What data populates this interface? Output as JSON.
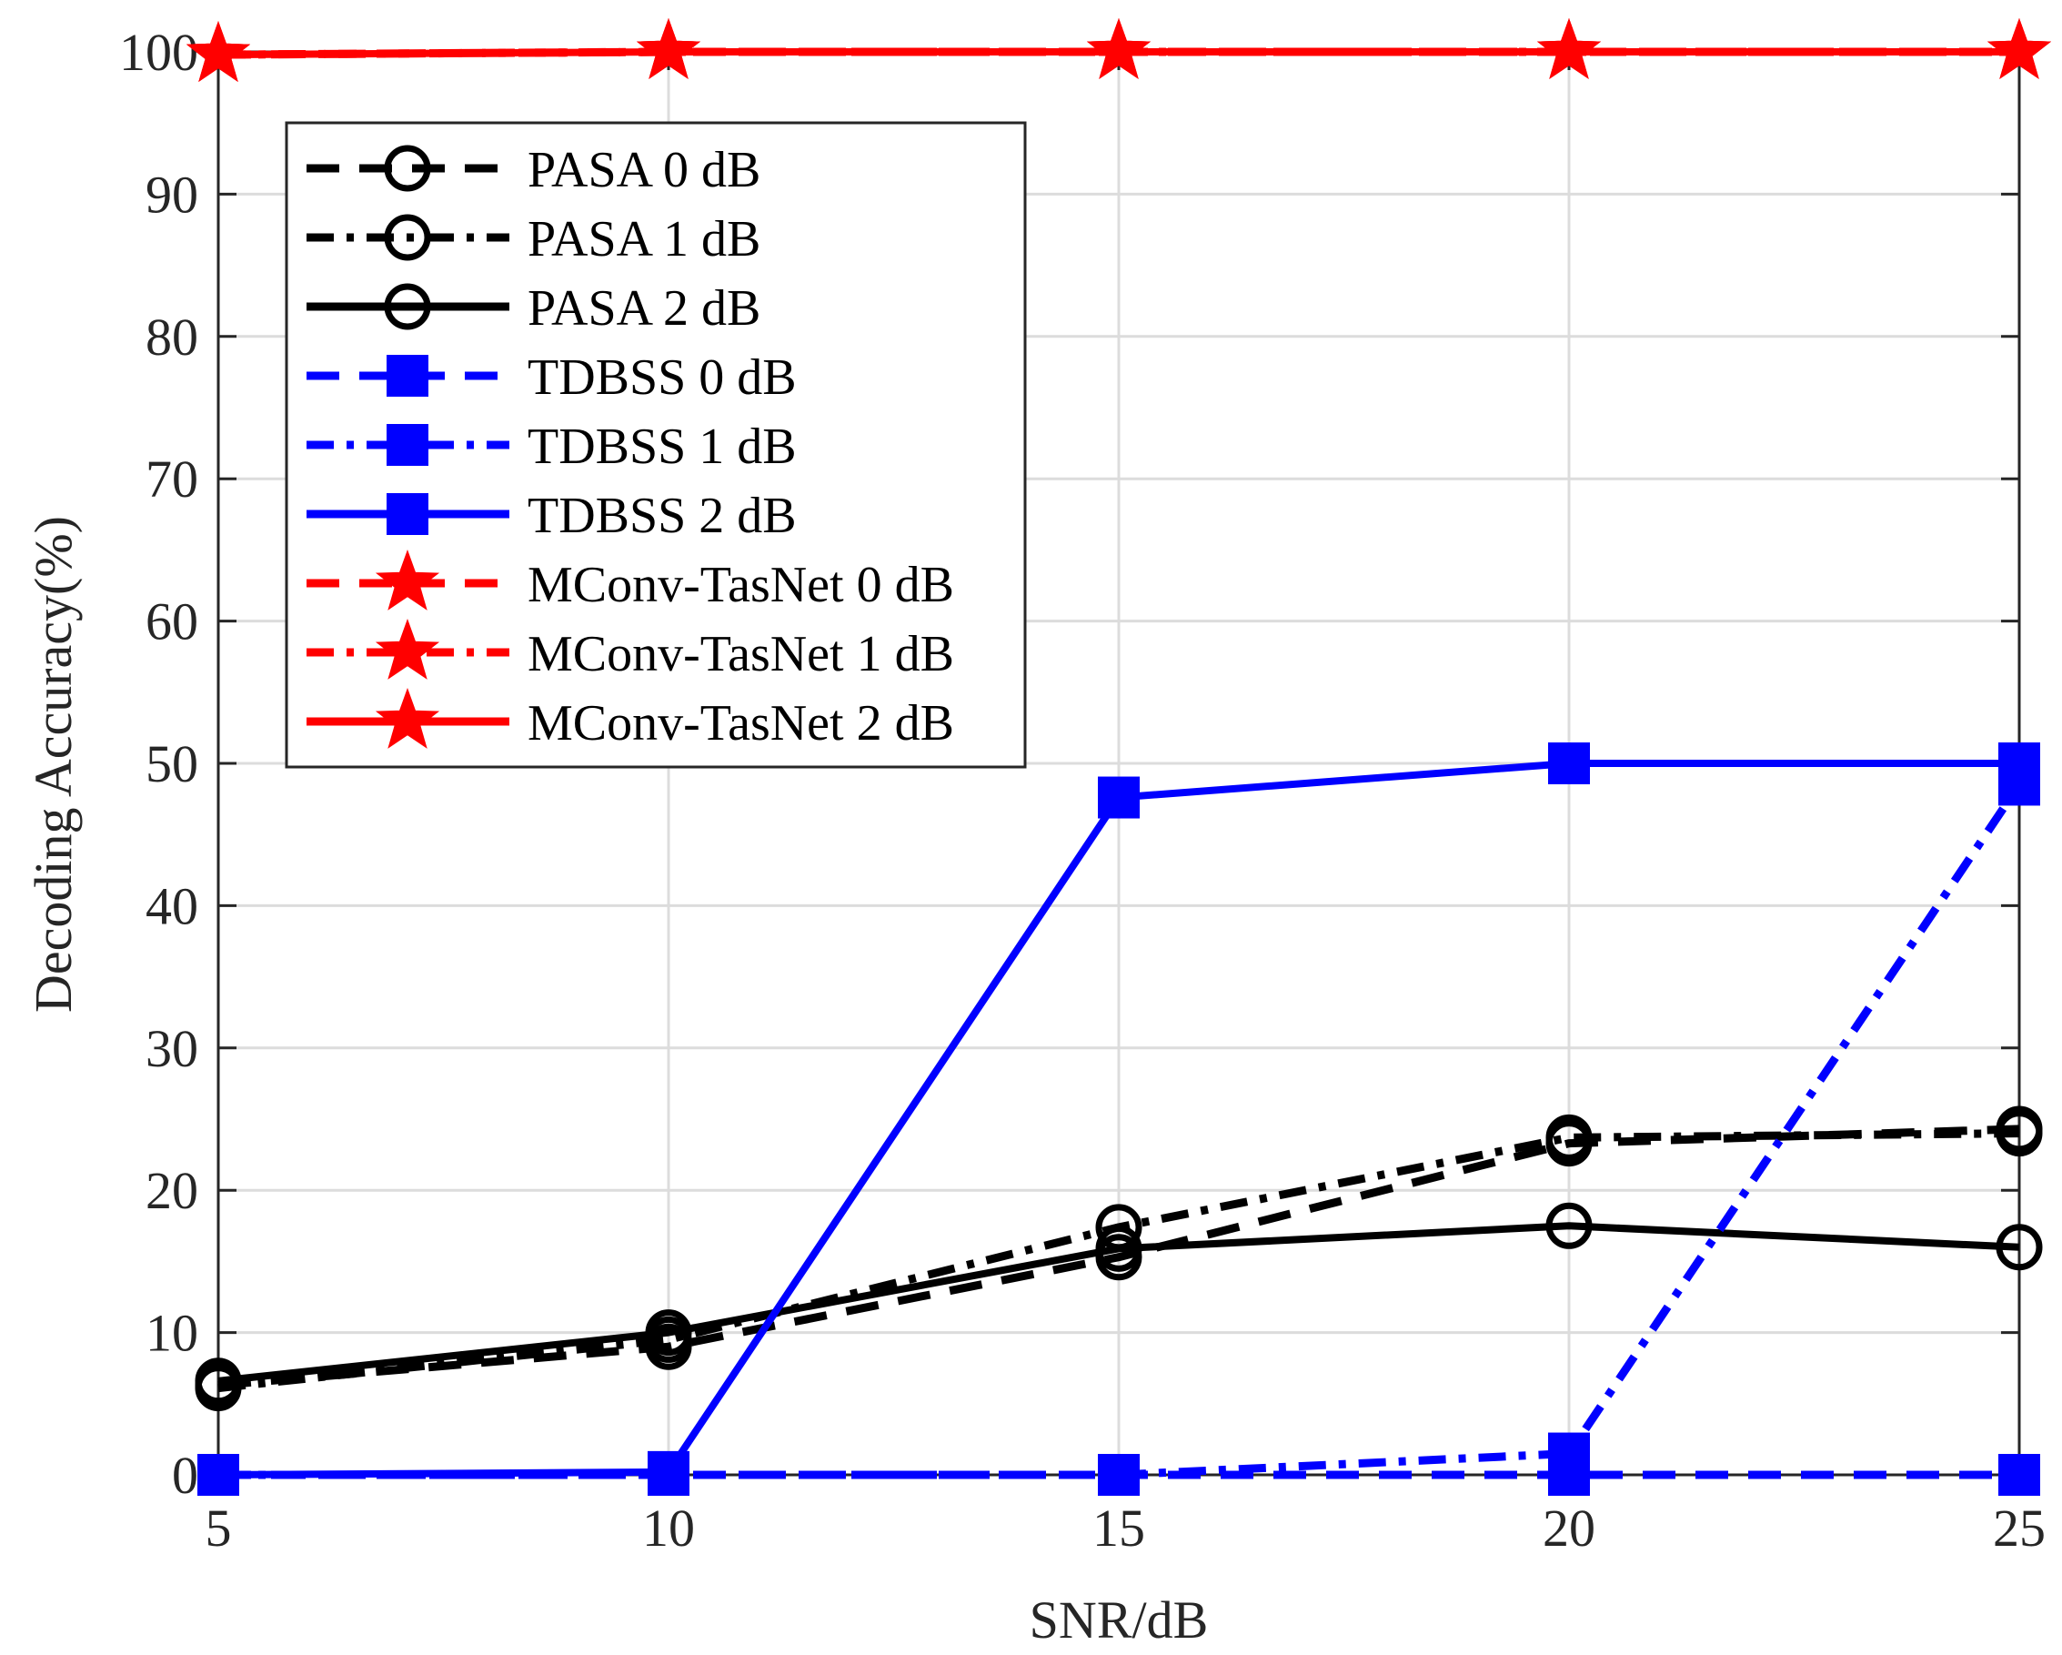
{
  "chart_data": {
    "type": "line",
    "title": "",
    "xlabel": "SNR/dB",
    "ylabel": "Decoding  Accuracy(%)",
    "xlim": [
      5,
      25
    ],
    "ylim": [
      0,
      100
    ],
    "xticks": [
      5,
      10,
      15,
      20,
      25
    ],
    "yticks": [
      0,
      10,
      20,
      30,
      40,
      50,
      60,
      70,
      80,
      90,
      100
    ],
    "grid": true,
    "legend_position": "top-left",
    "x": [
      5,
      10,
      15,
      20,
      25
    ],
    "series": [
      {
        "name": "PASA 0 dB",
        "values": [
          6.3,
          9.0,
          15.3,
          23.3,
          24.3
        ],
        "color": "#000000",
        "dash": "dashed",
        "marker": "circle"
      },
      {
        "name": "PASA 1 dB",
        "values": [
          6.1,
          9.5,
          17.4,
          23.7,
          24.0
        ],
        "color": "#000000",
        "dash": "dashdot",
        "marker": "circle"
      },
      {
        "name": "PASA 2 dB",
        "values": [
          6.6,
          10.0,
          15.9,
          17.5,
          16.0
        ],
        "color": "#000000",
        "dash": "solid",
        "marker": "circle"
      },
      {
        "name": "TDBSS 0 dB",
        "values": [
          0,
          0,
          0,
          0,
          0
        ],
        "color": "#0000ff",
        "dash": "dashed",
        "marker": "square"
      },
      {
        "name": "TDBSS 1 dB",
        "values": [
          0,
          0,
          0,
          1.5,
          48.5
        ],
        "color": "#0000ff",
        "dash": "dashdot",
        "marker": "square"
      },
      {
        "name": "TDBSS 2 dB",
        "values": [
          0,
          0.2,
          47.6,
          50.0,
          50.0
        ],
        "color": "#0000ff",
        "dash": "solid",
        "marker": "square"
      },
      {
        "name": "MConv-TasNet 0 dB",
        "values": [
          99.8,
          100,
          100,
          100,
          100
        ],
        "color": "#ff0000",
        "dash": "dashed",
        "marker": "star"
      },
      {
        "name": "MConv-TasNet 1 dB",
        "values": [
          99.8,
          100,
          100,
          100,
          100
        ],
        "color": "#ff0000",
        "dash": "dashdot",
        "marker": "star"
      },
      {
        "name": "MConv-TasNet 2 dB",
        "values": [
          99.8,
          100,
          100,
          100,
          100
        ],
        "color": "#ff0000",
        "dash": "solid",
        "marker": "star"
      }
    ]
  }
}
